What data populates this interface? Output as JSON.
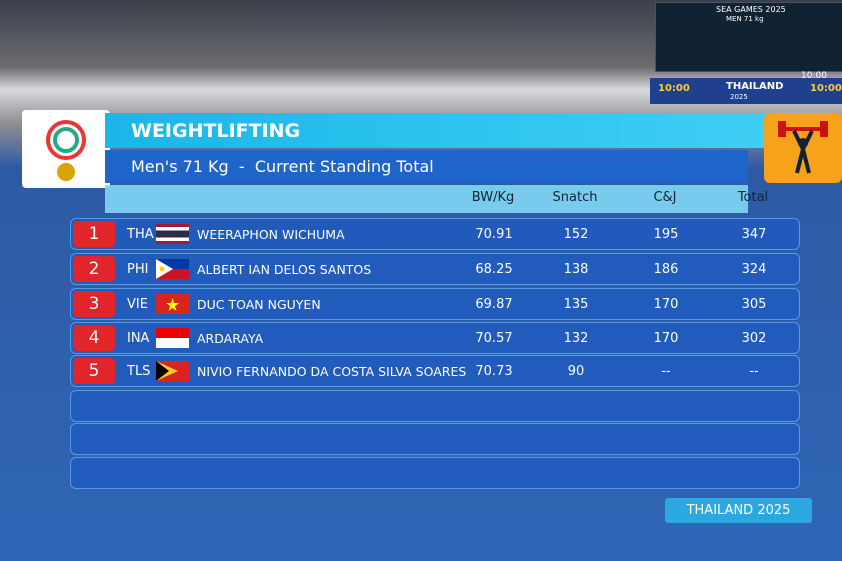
{
  "background": {
    "scoreboard": {
      "title": "SEA GAMES 2025",
      "event": "MEN 71 kg",
      "clock": "10:00"
    },
    "banner": "THAILAND",
    "left_clock": "10:00",
    "right_clock": "10:00",
    "banner_year": "2025"
  },
  "header": {
    "title": "WEIGHTLIFTING",
    "subtitle": "Men's 71 Kg  -  Current Standing Total"
  },
  "table": {
    "columns": [
      "BW/Kg",
      "Snatch",
      "C&J",
      "Total"
    ],
    "rows": [
      {
        "rank": "1",
        "country": "THA",
        "name": "WEERAPHON WICHUMA",
        "bw": "70.91",
        "snatch": "152",
        "cj": "195",
        "total": "347"
      },
      {
        "rank": "2",
        "country": "PHI",
        "name": "ALBERT IAN DELOS SANTOS",
        "bw": "68.25",
        "snatch": "138",
        "cj": "186",
        "total": "324"
      },
      {
        "rank": "3",
        "country": "VIE",
        "name": "DUC TOAN NGUYEN",
        "bw": "69.87",
        "snatch": "135",
        "cj": "170",
        "total": "305"
      },
      {
        "rank": "4",
        "country": "INA",
        "name": "ARDARAYA",
        "bw": "70.57",
        "snatch": "132",
        "cj": "170",
        "total": "302"
      },
      {
        "rank": "5",
        "country": "TLS",
        "name": "NIVIO FERNANDO DA COSTA SILVA SOARES",
        "bw": "70.73",
        "snatch": "90",
        "cj": "--",
        "total": "--"
      }
    ]
  },
  "footer": {
    "label": "THAILAND 2025"
  }
}
